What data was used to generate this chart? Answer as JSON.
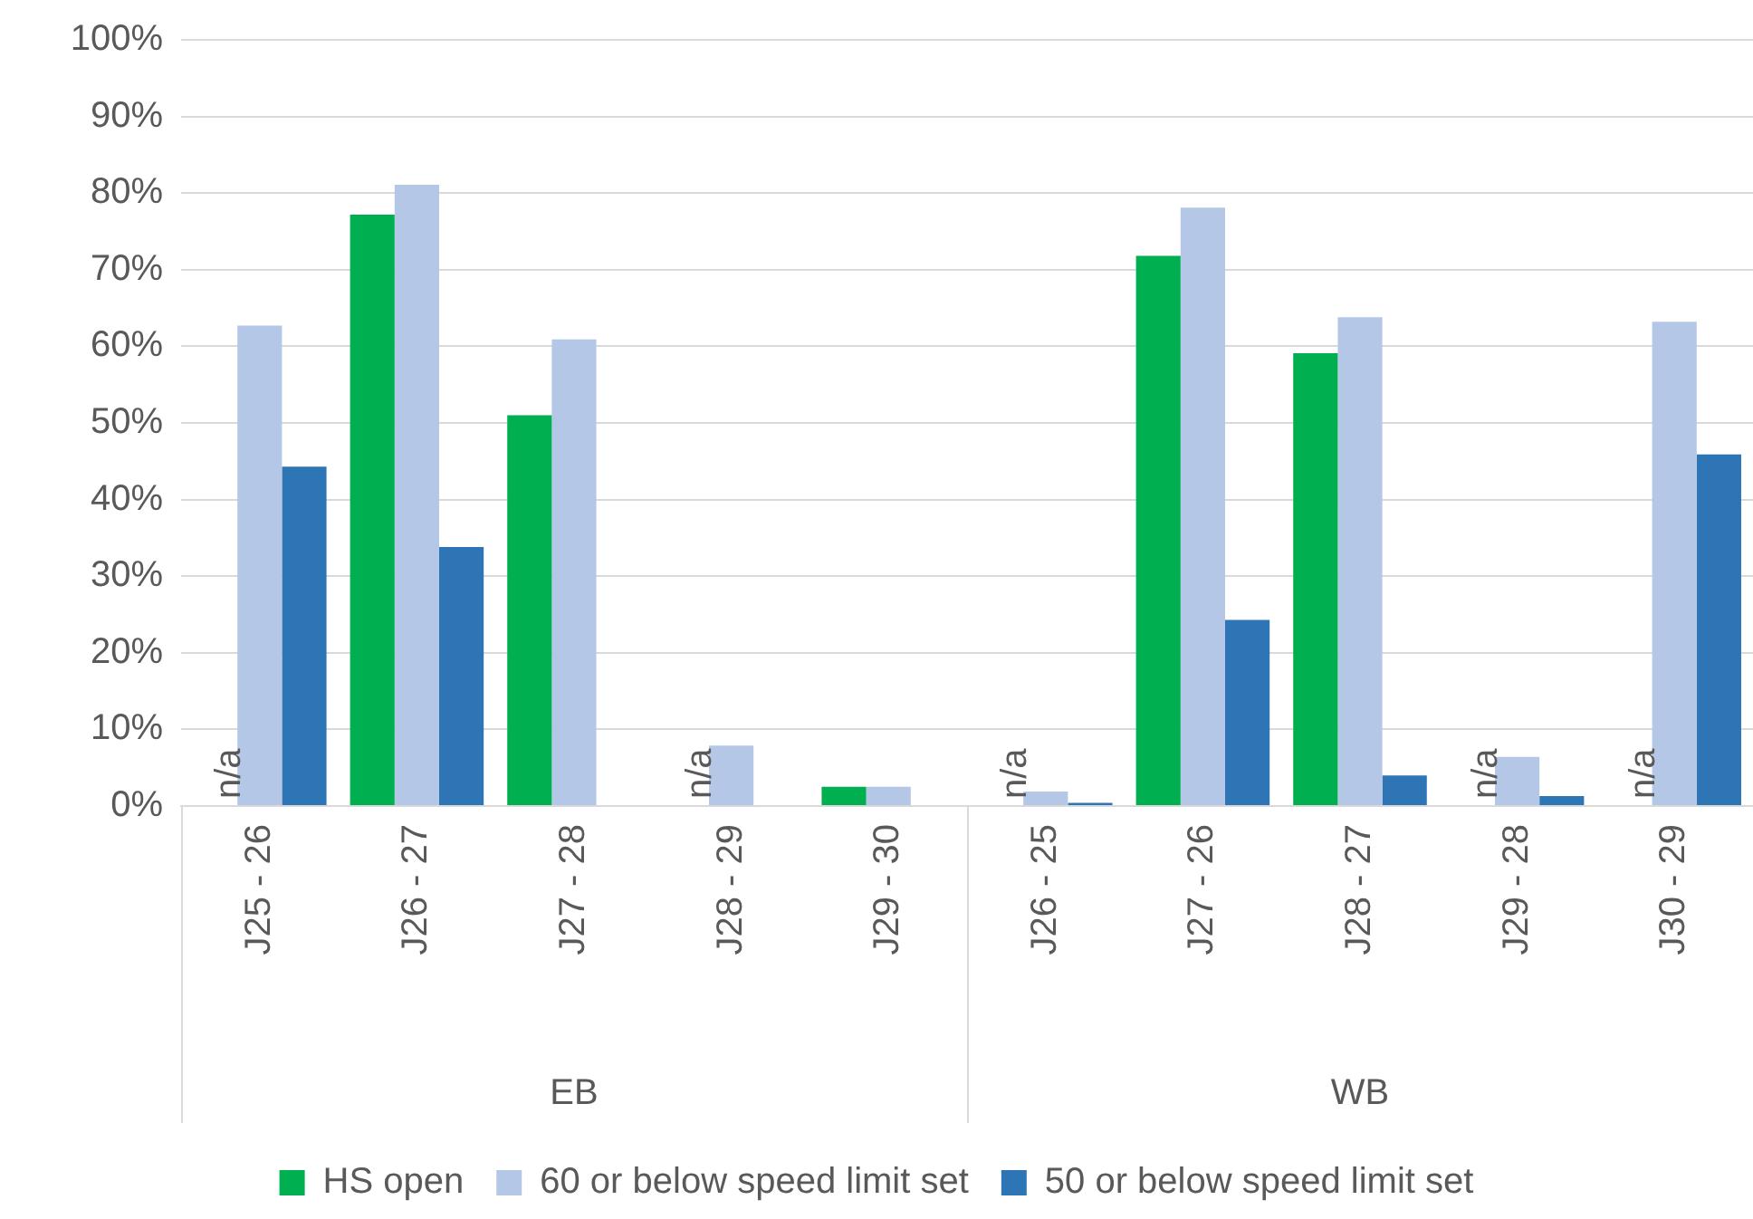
{
  "chart_data": {
    "type": "bar",
    "categories": [
      "J25 - 26",
      "J26 - 27",
      "J27 - 28",
      "J28 - 29",
      "J29 - 30",
      "J26 - 25",
      "J27 - 26",
      "J28 - 27",
      "J29 - 28",
      "J30 - 29"
    ],
    "series": [
      {
        "name": "HS open",
        "color": "#00b050",
        "values": [
          null,
          77.2,
          51.0,
          null,
          2.5,
          null,
          71.8,
          59.1,
          null,
          null
        ]
      },
      {
        "name": "60 or below speed limit set",
        "color": "#b4c7e7",
        "values": [
          62.7,
          81.1,
          60.9,
          7.9,
          2.5,
          1.9,
          78.1,
          63.8,
          6.4,
          63.2
        ]
      },
      {
        "name": "50 or below speed limit set",
        "color": "#2e75b6",
        "values": [
          44.3,
          33.8,
          0,
          0,
          0,
          0.4,
          24.3,
          4.0,
          1.3,
          45.9
        ]
      }
    ],
    "ylim": [
      0,
      100
    ],
    "yticks": [
      {
        "value": 0,
        "label": "0%"
      },
      {
        "value": 10,
        "label": "10%"
      },
      {
        "value": 20,
        "label": "20%"
      },
      {
        "value": 30,
        "label": "30%"
      },
      {
        "value": 40,
        "label": "40%"
      },
      {
        "value": 50,
        "label": "50%"
      },
      {
        "value": 60,
        "label": "60%"
      },
      {
        "value": 70,
        "label": "70%"
      },
      {
        "value": 80,
        "label": "80%"
      },
      {
        "value": 90,
        "label": "90%"
      },
      {
        "value": 100,
        "label": "100%"
      }
    ],
    "grid": "y",
    "legend": "bottom",
    "annotations": [
      "n/a",
      "n/a",
      "n/a",
      "n/a",
      "n/a",
      "EB",
      "WB"
    ]
  }
}
